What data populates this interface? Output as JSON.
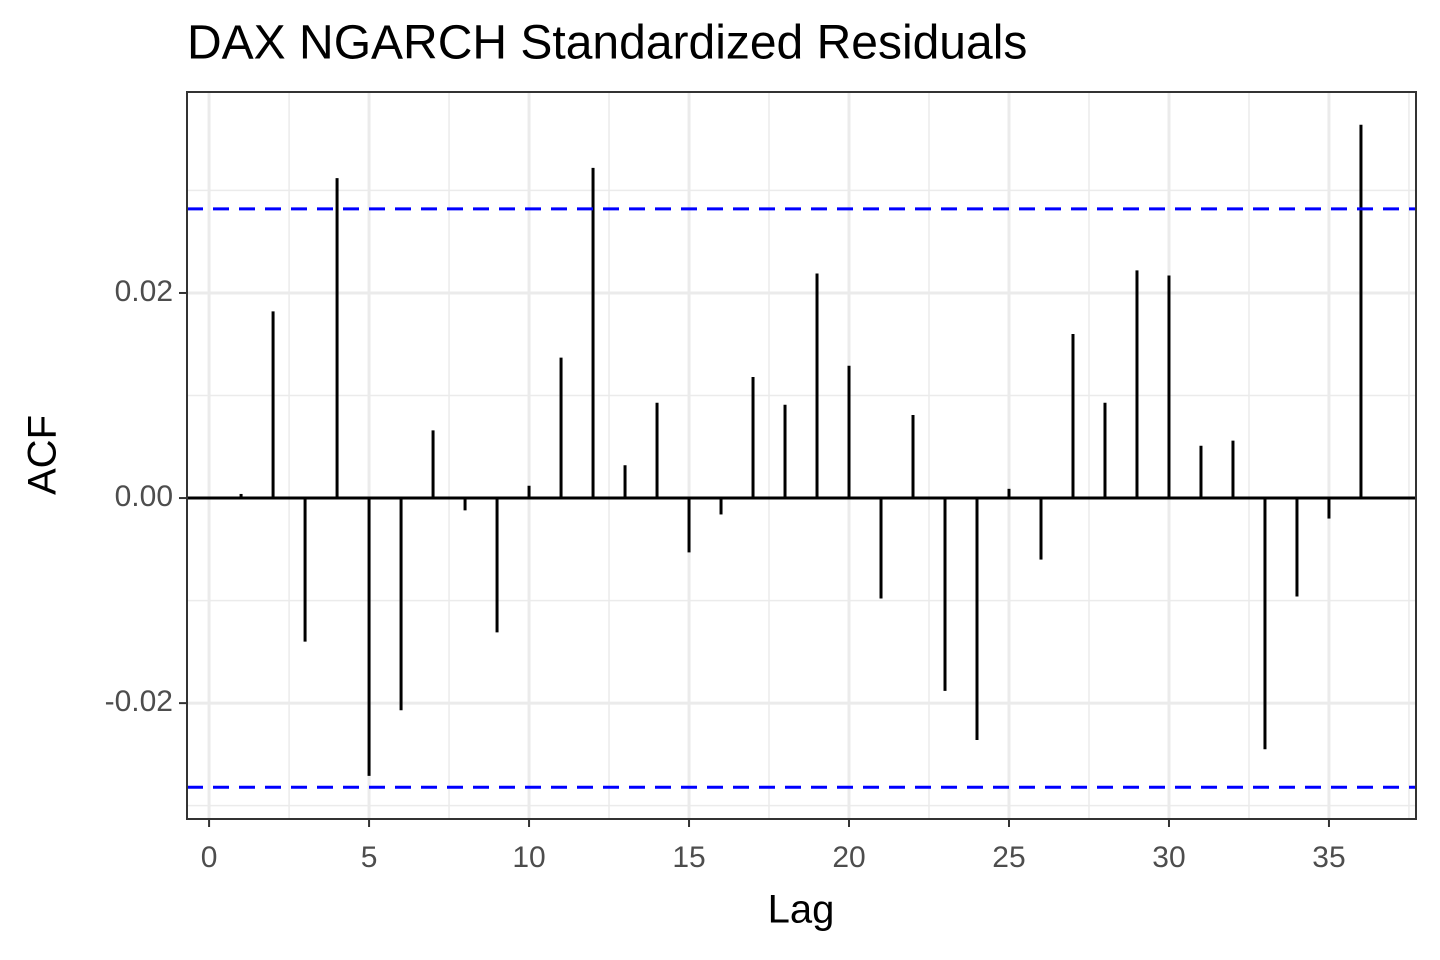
{
  "chart_data": {
    "type": "acf",
    "title": "DAX NGARCH Standardized Residuals",
    "x_label": "Lag",
    "y_label": "ACF",
    "x": [
      1,
      2,
      3,
      4,
      5,
      6,
      7,
      8,
      9,
      10,
      11,
      12,
      13,
      14,
      15,
      16,
      17,
      18,
      19,
      20,
      21,
      22,
      23,
      24,
      25,
      26,
      27,
      28,
      29,
      30,
      31,
      32,
      33,
      34,
      35,
      36
    ],
    "values": [
      0.0004,
      0.0182,
      -0.014,
      0.0312,
      -0.0271,
      -0.0207,
      0.0066,
      -0.0012,
      -0.0131,
      0.0012,
      0.0137,
      0.0322,
      0.0032,
      0.0093,
      -0.0053,
      -0.0016,
      0.0118,
      0.0091,
      0.0219,
      0.0129,
      -0.0098,
      0.0081,
      -0.0188,
      -0.0236,
      0.0009,
      -0.006,
      0.016,
      0.0093,
      0.0222,
      0.0217,
      0.0051,
      0.0056,
      -0.0245,
      -0.0096,
      -0.002,
      0.0364
    ],
    "color": "#000000",
    "threshold_lines": [
      0.0282,
      -0.0282
    ],
    "threshold_color": "#0000ff",
    "xlim": [
      -0.69,
      37.72
    ],
    "ylim": [
      -0.0313,
      0.0396
    ],
    "xticks": [
      0,
      5,
      10,
      15,
      20,
      25,
      30,
      35
    ],
    "yticks": [
      -0.02,
      {
        "value": 0,
        "label": "0.00"
      },
      0.02
    ],
    "minor_xticks": [
      2.5,
      7.5,
      12.5,
      17.5,
      22.5,
      27.5,
      32.5,
      37.5
    ],
    "minor_yticks": [
      -0.03,
      -0.01,
      0.01,
      0.03
    ],
    "grid": true
  }
}
